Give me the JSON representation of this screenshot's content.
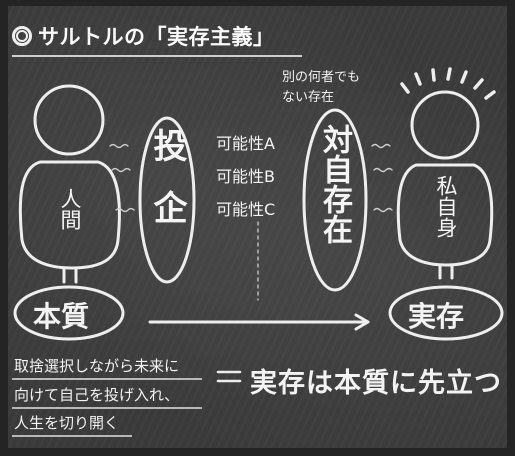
{
  "title": "サルトルの「実存主義」",
  "left_figure": {
    "label": "人間",
    "base_label": "本質"
  },
  "center": {
    "projection_label": "投企",
    "possibilities": [
      "可能性A",
      "可能性B",
      "可能性C"
    ]
  },
  "right_center": {
    "note": [
      "別の何者でも",
      "ない存在"
    ],
    "label": "対自存在"
  },
  "right_figure": {
    "label": "私自身",
    "base_label": "実存"
  },
  "explanation_lines": [
    "取捨選択しながら未来に",
    "向けて自己を投げ入れ、",
    "人生を切り開く"
  ],
  "equals_sign": "＝",
  "conclusion": "実存は本質に先立つ"
}
